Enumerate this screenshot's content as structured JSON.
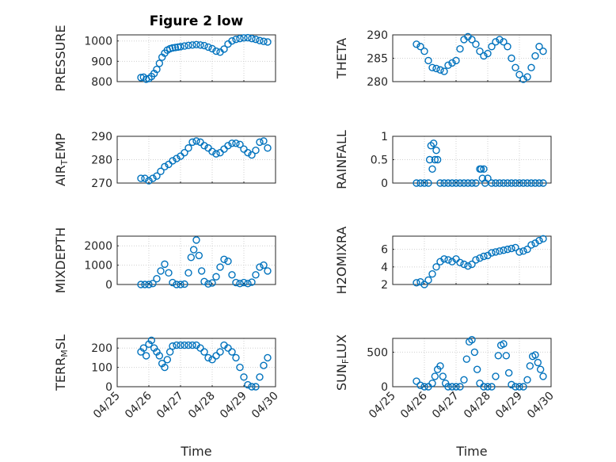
{
  "figure_title": "Figure 2 low",
  "colors": {
    "series": "#0072bd",
    "axis": "#262626",
    "grid": "#d0d0d0"
  },
  "chart_data": [
    {
      "type": "scatter",
      "title": "Figure 2 low",
      "ylabel": "PRESSURE",
      "ylabel_parts": [],
      "ylim": [
        800,
        1030
      ],
      "yticks": [
        800,
        900,
        1000
      ],
      "ytick_labels": [
        "800",
        "900",
        "1000"
      ],
      "xlim": [
        "04/25",
        "04/30"
      ],
      "xticks": [
        "04/25",
        "04/26",
        "04/27",
        "04/28",
        "04/29",
        "04/30"
      ],
      "show_xticklabels": false,
      "xlabel": "",
      "x": [
        "04/25 18:00",
        "04/25 20:00",
        "04/25 22:00",
        "04/26 00:00",
        "04/26 02:00",
        "04/26 04:00",
        "04/26 06:00",
        "04/26 08:00",
        "04/26 10:00",
        "04/26 12:00",
        "04/26 14:00",
        "04/26 16:00",
        "04/26 18:00",
        "04/26 20:00",
        "04/26 22:00",
        "04/27 00:00",
        "04/27 03:00",
        "04/27 06:00",
        "04/27 09:00",
        "04/27 12:00",
        "04/27 15:00",
        "04/27 18:00",
        "04/27 21:00",
        "04/28 00:00",
        "04/28 03:00",
        "04/28 06:00",
        "04/28 09:00",
        "04/28 12:00",
        "04/28 15:00",
        "04/28 18:00",
        "04/28 21:00",
        "04/29 00:00",
        "04/29 03:00",
        "04/29 06:00",
        "04/29 09:00",
        "04/29 12:00",
        "04/29 15:00",
        "04/29 18:00"
      ],
      "y": [
        820,
        822,
        812,
        815,
        825,
        840,
        860,
        890,
        920,
        940,
        955,
        962,
        966,
        968,
        970,
        972,
        975,
        978,
        980,
        982,
        980,
        977,
        970,
        962,
        950,
        945,
        960,
        985,
        1000,
        1008,
        1012,
        1015,
        1016,
        1012,
        1008,
        1002,
        998,
        995
      ]
    },
    {
      "type": "scatter",
      "title": "",
      "ylabel": "THETA",
      "ylabel_parts": [],
      "ylim": [
        280,
        290
      ],
      "yticks": [
        280,
        285,
        290
      ],
      "ytick_labels": [
        "280",
        "285",
        "290"
      ],
      "xlim": [
        "04/25",
        "04/30"
      ],
      "xticks": [
        "04/25",
        "04/26",
        "04/27",
        "04/28",
        "04/29",
        "04/30"
      ],
      "show_xticklabels": false,
      "xlabel": "",
      "x": [
        "04/25 18:00",
        "04/25 21:00",
        "04/26 00:00",
        "04/26 03:00",
        "04/26 06:00",
        "04/26 09:00",
        "04/26 12:00",
        "04/26 15:00",
        "04/26 18:00",
        "04/26 21:00",
        "04/27 00:00",
        "04/27 03:00",
        "04/27 06:00",
        "04/27 09:00",
        "04/27 12:00",
        "04/27 15:00",
        "04/27 18:00",
        "04/27 21:00",
        "04/28 00:00",
        "04/28 03:00",
        "04/28 06:00",
        "04/28 09:00",
        "04/28 12:00",
        "04/28 15:00",
        "04/28 18:00",
        "04/28 21:00",
        "04/29 00:00",
        "04/29 03:00",
        "04/29 06:00",
        "04/29 09:00",
        "04/29 12:00",
        "04/29 15:00",
        "04/29 18:00"
      ],
      "y": [
        288,
        287.5,
        286.5,
        284.5,
        283,
        282.8,
        282.5,
        282.2,
        283.5,
        284,
        284.5,
        287,
        289,
        289.6,
        289,
        288,
        286.5,
        285.5,
        286,
        287.5,
        288.5,
        289,
        288.5,
        287.5,
        285,
        283,
        281.5,
        280.5,
        281,
        283,
        285.5,
        287.5,
        286.5
      ]
    },
    {
      "type": "scatter",
      "title": "",
      "ylabel": "AIR_TEMP",
      "ylabel_parts": [
        "AIR",
        "T",
        "EMP"
      ],
      "ylim": [
        270,
        290
      ],
      "yticks": [
        270,
        280,
        290
      ],
      "ytick_labels": [
        "270",
        "280",
        "290"
      ],
      "xlim": [
        "04/25",
        "04/30"
      ],
      "xticks": [
        "04/25",
        "04/26",
        "04/27",
        "04/28",
        "04/29",
        "04/30"
      ],
      "show_xticklabels": false,
      "xlabel": "",
      "x": [
        "04/25 18:00",
        "04/25 21:00",
        "04/26 00:00",
        "04/26 03:00",
        "04/26 06:00",
        "04/26 09:00",
        "04/26 12:00",
        "04/26 15:00",
        "04/26 18:00",
        "04/26 21:00",
        "04/27 00:00",
        "04/27 03:00",
        "04/27 06:00",
        "04/27 09:00",
        "04/27 12:00",
        "04/27 15:00",
        "04/27 18:00",
        "04/27 21:00",
        "04/28 00:00",
        "04/28 03:00",
        "04/28 06:00",
        "04/28 09:00",
        "04/28 12:00",
        "04/28 15:00",
        "04/28 18:00",
        "04/28 21:00",
        "04/29 00:00",
        "04/29 03:00",
        "04/29 06:00",
        "04/29 09:00",
        "04/29 12:00",
        "04/29 15:00",
        "04/29 18:00"
      ],
      "y": [
        272,
        272,
        271,
        272,
        273,
        275,
        277,
        278,
        279.5,
        280.5,
        281.5,
        283,
        285,
        287.5,
        288,
        287.5,
        286,
        285,
        283.5,
        282.5,
        283,
        284.5,
        286,
        287,
        287,
        286.5,
        284.5,
        283,
        282,
        284,
        287.5,
        288,
        285
      ]
    },
    {
      "type": "scatter",
      "title": "",
      "ylabel": "RAINFALL",
      "ylabel_parts": [],
      "ylim": [
        0,
        1
      ],
      "yticks": [
        0,
        0.5,
        1
      ],
      "ytick_labels": [
        "0",
        "0.5",
        "1"
      ],
      "xlim": [
        "04/25",
        "04/30"
      ],
      "xticks": [
        "04/25",
        "04/26",
        "04/27",
        "04/28",
        "04/29",
        "04/30"
      ],
      "show_xticklabels": false,
      "xlabel": "",
      "x": [
        "04/25 18:00",
        "04/25 21:00",
        "04/26 00:00",
        "04/26 03:00",
        "04/26 04:00",
        "04/26 05:00",
        "04/26 06:00",
        "04/26 07:00",
        "04/26 08:00",
        "04/26 09:00",
        "04/26 10:00",
        "04/26 12:00",
        "04/26 15:00",
        "04/26 18:00",
        "04/26 21:00",
        "04/27 00:00",
        "04/27 03:00",
        "04/27 06:00",
        "04/27 09:00",
        "04/27 12:00",
        "04/27 15:00",
        "04/27 18:00",
        "04/27 19:00",
        "04/27 20:00",
        "04/27 21:00",
        "04/27 22:00",
        "04/28 00:00",
        "04/28 03:00",
        "04/28 06:00",
        "04/28 09:00",
        "04/28 12:00",
        "04/28 15:00",
        "04/28 18:00",
        "04/28 21:00",
        "04/29 00:00",
        "04/29 03:00",
        "04/29 06:00",
        "04/29 09:00",
        "04/29 12:00",
        "04/29 15:00",
        "04/29 18:00"
      ],
      "y": [
        0,
        0,
        0,
        0,
        0.5,
        0.8,
        0.3,
        0.85,
        0.5,
        0.7,
        0.5,
        0,
        0,
        0,
        0,
        0,
        0,
        0,
        0,
        0,
        0,
        0.3,
        0.3,
        0.1,
        0.3,
        0,
        0.1,
        0,
        0,
        0,
        0,
        0,
        0,
        0,
        0,
        0,
        0,
        0,
        0,
        0,
        0
      ]
    },
    {
      "type": "scatter",
      "title": "",
      "ylabel": "MIXDEPTH",
      "ylabel_parts": [],
      "ylim": [
        0,
        2500
      ],
      "yticks": [
        0,
        1000,
        2000
      ],
      "ytick_labels": [
        "0",
        "1000",
        "2000"
      ],
      "xlim": [
        "04/25",
        "04/30"
      ],
      "xticks": [
        "04/25",
        "04/26",
        "04/27",
        "04/28",
        "04/29",
        "04/30"
      ],
      "show_xticklabels": false,
      "xlabel": "",
      "x": [
        "04/25 18:00",
        "04/25 21:00",
        "04/26 00:00",
        "04/26 03:00",
        "04/26 06:00",
        "04/26 09:00",
        "04/26 12:00",
        "04/26 15:00",
        "04/26 18:00",
        "04/26 21:00",
        "04/27 00:00",
        "04/27 03:00",
        "04/27 06:00",
        "04/27 08:00",
        "04/27 10:00",
        "04/27 12:00",
        "04/27 14:00",
        "04/27 16:00",
        "04/27 18:00",
        "04/27 21:00",
        "04/28 00:00",
        "04/28 03:00",
        "04/28 06:00",
        "04/28 09:00",
        "04/28 12:00",
        "04/28 15:00",
        "04/28 18:00",
        "04/28 21:00",
        "04/29 00:00",
        "04/29 03:00",
        "04/29 06:00",
        "04/29 09:00",
        "04/29 12:00",
        "04/29 15:00",
        "04/29 18:00"
      ],
      "y": [
        0,
        0,
        0,
        50,
        300,
        700,
        1050,
        600,
        100,
        0,
        0,
        20,
        600,
        1400,
        1800,
        2300,
        1500,
        700,
        150,
        30,
        80,
        400,
        900,
        1300,
        1200,
        500,
        100,
        50,
        100,
        50,
        120,
        500,
        900,
        1000,
        700
      ]
    },
    {
      "type": "scatter",
      "title": "",
      "ylabel": "H2OMIXRA",
      "ylabel_parts": [],
      "ylim": [
        2,
        7.5
      ],
      "yticks": [
        2,
        4,
        6
      ],
      "ytick_labels": [
        "2",
        "4",
        "6"
      ],
      "xlim": [
        "04/25",
        "04/30"
      ],
      "xticks": [
        "04/25",
        "04/26",
        "04/27",
        "04/28",
        "04/29",
        "04/30"
      ],
      "show_xticklabels": false,
      "xlabel": "",
      "x": [
        "04/25 18:00",
        "04/25 21:00",
        "04/26 00:00",
        "04/26 03:00",
        "04/26 06:00",
        "04/26 09:00",
        "04/26 12:00",
        "04/26 15:00",
        "04/26 18:00",
        "04/26 21:00",
        "04/27 00:00",
        "04/27 03:00",
        "04/27 06:00",
        "04/27 09:00",
        "04/27 12:00",
        "04/27 15:00",
        "04/27 18:00",
        "04/27 21:00",
        "04/28 00:00",
        "04/28 03:00",
        "04/28 06:00",
        "04/28 09:00",
        "04/28 12:00",
        "04/28 15:00",
        "04/28 18:00",
        "04/28 21:00",
        "04/29 00:00",
        "04/29 03:00",
        "04/29 06:00",
        "04/29 09:00",
        "04/29 12:00",
        "04/29 15:00",
        "04/29 18:00"
      ],
      "y": [
        2.2,
        2.3,
        2,
        2.5,
        3.2,
        4,
        4.6,
        4.9,
        4.8,
        4.6,
        4.9,
        4.5,
        4.3,
        4.1,
        4.3,
        4.8,
        5,
        5.2,
        5.3,
        5.6,
        5.7,
        5.8,
        5.9,
        6,
        6.1,
        6.2,
        5.7,
        5.8,
        6,
        6.5,
        6.7,
        7,
        7.2
      ]
    },
    {
      "type": "scatter",
      "title": "",
      "ylabel": "TERR_MSL",
      "ylabel_parts": [
        "TERR",
        "M",
        "SL"
      ],
      "ylim": [
        0,
        250
      ],
      "yticks": [
        0,
        100,
        200
      ],
      "ytick_labels": [
        "0",
        "100",
        "200"
      ],
      "xlim": [
        "04/25",
        "04/30"
      ],
      "xticks": [
        "04/25",
        "04/26",
        "04/27",
        "04/28",
        "04/29",
        "04/30"
      ],
      "xtick_labels": [
        "04/25",
        "04/26",
        "04/27",
        "04/28",
        "04/29",
        "04/30"
      ],
      "show_xticklabels": true,
      "xlabel": "Time",
      "x": [
        "04/25 18:00",
        "04/25 20:00",
        "04/25 22:00",
        "04/26 00:00",
        "04/26 02:00",
        "04/26 04:00",
        "04/26 06:00",
        "04/26 08:00",
        "04/26 10:00",
        "04/26 12:00",
        "04/26 14:00",
        "04/26 16:00",
        "04/26 18:00",
        "04/26 21:00",
        "04/27 00:00",
        "04/27 03:00",
        "04/27 06:00",
        "04/27 09:00",
        "04/27 12:00",
        "04/27 15:00",
        "04/27 18:00",
        "04/27 21:00",
        "04/28 00:00",
        "04/28 03:00",
        "04/28 06:00",
        "04/28 09:00",
        "04/28 12:00",
        "04/28 15:00",
        "04/28 18:00",
        "04/28 21:00",
        "04/29 00:00",
        "04/29 03:00",
        "04/29 06:00",
        "04/29 09:00",
        "04/29 12:00",
        "04/29 15:00",
        "04/29 18:00"
      ],
      "y": [
        180,
        200,
        160,
        220,
        240,
        200,
        180,
        160,
        120,
        100,
        140,
        180,
        210,
        215,
        215,
        215,
        215,
        215,
        215,
        200,
        180,
        150,
        140,
        160,
        180,
        215,
        200,
        180,
        150,
        100,
        50,
        10,
        0,
        0,
        50,
        110,
        150
      ]
    },
    {
      "type": "scatter",
      "title": "",
      "ylabel": "SUN_FLUX",
      "ylabel_parts": [
        "SUN",
        "F",
        "LUX"
      ],
      "ylim": [
        0,
        700
      ],
      "yticks": [
        0,
        500
      ],
      "ytick_labels": [
        "0",
        "500"
      ],
      "xlim": [
        "04/25",
        "04/30"
      ],
      "xticks": [
        "04/25",
        "04/26",
        "04/27",
        "04/28",
        "04/29",
        "04/30"
      ],
      "xtick_labels": [
        "04/25",
        "04/26",
        "04/27",
        "04/28",
        "04/29",
        "04/30"
      ],
      "show_xticklabels": true,
      "xlabel": "Time",
      "x": [
        "04/25 18:00",
        "04/25 21:00",
        "04/26 00:00",
        "04/26 03:00",
        "04/26 06:00",
        "04/26 08:00",
        "04/26 10:00",
        "04/26 12:00",
        "04/26 14:00",
        "04/26 16:00",
        "04/26 18:00",
        "04/26 21:00",
        "04/27 00:00",
        "04/27 03:00",
        "04/27 06:00",
        "04/27 08:00",
        "04/27 10:00",
        "04/27 12:00",
        "04/27 14:00",
        "04/27 16:00",
        "04/27 18:00",
        "04/27 21:00",
        "04/28 00:00",
        "04/28 03:00",
        "04/28 06:00",
        "04/28 08:00",
        "04/28 10:00",
        "04/28 12:00",
        "04/28 14:00",
        "04/28 16:00",
        "04/28 18:00",
        "04/28 21:00",
        "04/29 00:00",
        "04/29 03:00",
        "04/29 06:00",
        "04/29 08:00",
        "04/29 10:00",
        "04/29 12:00",
        "04/29 14:00",
        "04/29 16:00",
        "04/29 18:00"
      ],
      "y": [
        80,
        20,
        0,
        0,
        50,
        150,
        250,
        300,
        150,
        50,
        0,
        0,
        0,
        0,
        100,
        400,
        650,
        680,
        500,
        250,
        50,
        0,
        0,
        0,
        150,
        450,
        600,
        620,
        450,
        200,
        30,
        0,
        0,
        0,
        100,
        300,
        440,
        460,
        350,
        250,
        150
      ]
    }
  ]
}
